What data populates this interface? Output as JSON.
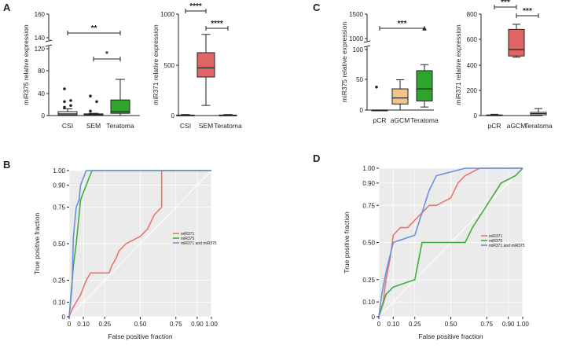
{
  "panels": {
    "A": "A",
    "B": "B",
    "C": "C",
    "D": "D"
  },
  "chart_data": [
    {
      "id": "A1",
      "type": "box",
      "ylabel": "miR375 relative expression",
      "categories": [
        "CSI",
        "SEM",
        "Teratoma"
      ],
      "ybreak": {
        "lower": [
          0,
          120
        ],
        "upper": [
          140,
          160
        ]
      },
      "ticks": [
        "0",
        "40",
        "80",
        "120",
        "140",
        "160"
      ],
      "boxes": [
        {
          "min": 0,
          "q1": 1,
          "median": 3,
          "q3": 7,
          "max": 12,
          "color": "#ffffff",
          "outliers": [
            15,
            18,
            25,
            27,
            48
          ]
        },
        {
          "min": 0,
          "q1": 1,
          "median": 2,
          "q3": 3,
          "max": 4,
          "color": "#ffffff",
          "outliers": [
            8,
            25,
            35
          ]
        },
        {
          "min": 0,
          "q1": 4,
          "median": 7,
          "q3": 28,
          "max": 65,
          "color": "#2ea62e",
          "outliers": []
        }
      ],
      "brackets": [
        {
          "from": 0,
          "to": 2,
          "label": "**"
        },
        {
          "from": 1,
          "to": 2,
          "label": "*"
        }
      ]
    },
    {
      "id": "A2",
      "type": "box",
      "ylabel": "miR371 relative expression",
      "categories": [
        "CSI",
        "SEM",
        "Teratoma"
      ],
      "ylim": [
        0,
        1000
      ],
      "ticks": [
        "0",
        "500",
        "1000"
      ],
      "boxes": [
        {
          "min": 0,
          "q1": 0,
          "median": 2,
          "q3": 5,
          "max": 10,
          "color": "#ffffff",
          "outliers": []
        },
        {
          "min": 100,
          "q1": 380,
          "median": 470,
          "q3": 620,
          "max": 800,
          "color": "#e06666",
          "outliers": []
        },
        {
          "min": 0,
          "q1": 0,
          "median": 2,
          "q3": 5,
          "max": 10,
          "color": "#ffffff",
          "outliers": []
        }
      ],
      "brackets": [
        {
          "from": 0,
          "to": 1,
          "label": "****"
        },
        {
          "from": 1,
          "to": 2,
          "label": "****"
        }
      ]
    },
    {
      "id": "C1",
      "type": "box",
      "ylabel": "miR375 relative expression",
      "categories": [
        "pCR",
        "aGCM",
        "Teratoma"
      ],
      "ybreak": {
        "lower": [
          0,
          100
        ],
        "upper": [
          1000,
          1500
        ]
      },
      "ticks": [
        "0",
        "50",
        "100",
        "1000",
        "1500"
      ],
      "boxes": [
        {
          "min": 0,
          "q1": 0,
          "median": 0,
          "q3": 0,
          "max": 0,
          "color": "#ffffff",
          "outliers": [
            38
          ]
        },
        {
          "min": 0,
          "q1": 10,
          "median": 20,
          "q3": 35,
          "max": 50,
          "color": "#f3c48a",
          "outliers": []
        },
        {
          "min": 5,
          "q1": 15,
          "median": 35,
          "q3": 65,
          "max": 75,
          "color": "#2ea62e",
          "outliers": [
            1200
          ]
        }
      ],
      "brackets": [
        {
          "from": 0,
          "to": 2,
          "label": "***"
        }
      ]
    },
    {
      "id": "C2",
      "type": "box",
      "ylabel": "miR371 relative expression",
      "categories": [
        "pCR",
        "aGCM",
        "Teratoma"
      ],
      "ylim": [
        0,
        800
      ],
      "ticks": [
        "0",
        "200",
        "400",
        "600",
        "800"
      ],
      "boxes": [
        {
          "min": 0,
          "q1": 0,
          "median": 2,
          "q3": 5,
          "max": 10,
          "color": "#ffffff",
          "outliers": []
        },
        {
          "min": 460,
          "q1": 470,
          "median": 520,
          "q3": 680,
          "max": 720,
          "color": "#e06666",
          "outliers": []
        },
        {
          "min": 0,
          "q1": 5,
          "median": 15,
          "q3": 25,
          "max": 55,
          "color": "#ffffff",
          "outliers": []
        }
      ],
      "brackets": [
        {
          "from": 0,
          "to": 1,
          "label": "***"
        },
        {
          "from": 1,
          "to": 2,
          "label": "***"
        }
      ]
    },
    {
      "id": "B",
      "type": "line",
      "xlabel": "False positive fraction",
      "ylabel": "True positive fraction",
      "xticks": [
        "0",
        "0.10",
        "0.25",
        "0.50",
        "0.75",
        "0.90",
        "1.00"
      ],
      "yticks": [
        "0",
        "0.10",
        "0.25",
        "0.50",
        "0.75",
        "0.90",
        "1.00"
      ],
      "legend": [
        "miR371",
        "miR375",
        "miR371 and miR375"
      ],
      "series": [
        {
          "name": "miR371",
          "color": "#e8766d",
          "points": [
            [
              0,
              0
            ],
            [
              0.02,
              0.05
            ],
            [
              0.05,
              0.1
            ],
            [
              0.08,
              0.15
            ],
            [
              0.1,
              0.2
            ],
            [
              0.12,
              0.25
            ],
            [
              0.15,
              0.3
            ],
            [
              0.28,
              0.3
            ],
            [
              0.3,
              0.35
            ],
            [
              0.33,
              0.4
            ],
            [
              0.35,
              0.45
            ],
            [
              0.4,
              0.5
            ],
            [
              0.5,
              0.55
            ],
            [
              0.55,
              0.6
            ],
            [
              0.6,
              0.7
            ],
            [
              0.65,
              0.75
            ],
            [
              0.65,
              1.0
            ],
            [
              1.0,
              1.0
            ]
          ]
        },
        {
          "name": "miR375",
          "color": "#3dae3d",
          "points": [
            [
              0,
              0
            ],
            [
              0.03,
              0.35
            ],
            [
              0.05,
              0.5
            ],
            [
              0.07,
              0.7
            ],
            [
              0.08,
              0.8
            ],
            [
              0.1,
              0.85
            ],
            [
              0.12,
              0.9
            ],
            [
              0.14,
              0.95
            ],
            [
              0.16,
              1.0
            ],
            [
              1.0,
              1.0
            ]
          ]
        },
        {
          "name": "miR371 and miR375",
          "color": "#6b8fde",
          "points": [
            [
              0,
              0
            ],
            [
              0.02,
              0.2
            ],
            [
              0.03,
              0.55
            ],
            [
              0.05,
              0.75
            ],
            [
              0.07,
              0.8
            ],
            [
              0.08,
              0.9
            ],
            [
              0.1,
              0.95
            ],
            [
              0.12,
              1.0
            ],
            [
              1.0,
              1.0
            ]
          ]
        }
      ]
    },
    {
      "id": "D",
      "type": "line",
      "xlabel": "False positive fraction",
      "ylabel": "True positive fraction",
      "xticks": [
        "0",
        "0.10",
        "0.25",
        "0.50",
        "0.75",
        "0.90",
        "1.00"
      ],
      "yticks": [
        "0",
        "0.10",
        "0.25",
        "0.50",
        "0.75",
        "0.90",
        "1.00"
      ],
      "legend": [
        "miR371",
        "miR375",
        "miR371 and miR375"
      ],
      "series": [
        {
          "name": "miR371",
          "color": "#e8766d",
          "points": [
            [
              0,
              0
            ],
            [
              0.03,
              0.1
            ],
            [
              0.05,
              0.25
            ],
            [
              0.08,
              0.4
            ],
            [
              0.1,
              0.55
            ],
            [
              0.15,
              0.6
            ],
            [
              0.2,
              0.6
            ],
            [
              0.25,
              0.65
            ],
            [
              0.3,
              0.7
            ],
            [
              0.35,
              0.75
            ],
            [
              0.4,
              0.75
            ],
            [
              0.5,
              0.8
            ],
            [
              0.55,
              0.9
            ],
            [
              0.6,
              0.95
            ],
            [
              0.7,
              1.0
            ],
            [
              1.0,
              1.0
            ]
          ]
        },
        {
          "name": "miR375",
          "color": "#3dae3d",
          "points": [
            [
              0,
              0
            ],
            [
              0.05,
              0.15
            ],
            [
              0.1,
              0.2
            ],
            [
              0.25,
              0.25
            ],
            [
              0.3,
              0.5
            ],
            [
              0.6,
              0.5
            ],
            [
              0.65,
              0.6
            ],
            [
              0.75,
              0.75
            ],
            [
              0.85,
              0.9
            ],
            [
              0.95,
              0.95
            ],
            [
              1.0,
              1.0
            ]
          ]
        },
        {
          "name": "miR371 and miR375",
          "color": "#6b8fde",
          "points": [
            [
              0,
              0
            ],
            [
              0.02,
              0.15
            ],
            [
              0.05,
              0.3
            ],
            [
              0.1,
              0.5
            ],
            [
              0.25,
              0.55
            ],
            [
              0.3,
              0.7
            ],
            [
              0.35,
              0.85
            ],
            [
              0.4,
              0.95
            ],
            [
              0.6,
              1.0
            ],
            [
              0.9,
              1.0
            ],
            [
              1.0,
              1.0
            ]
          ]
        }
      ]
    }
  ]
}
